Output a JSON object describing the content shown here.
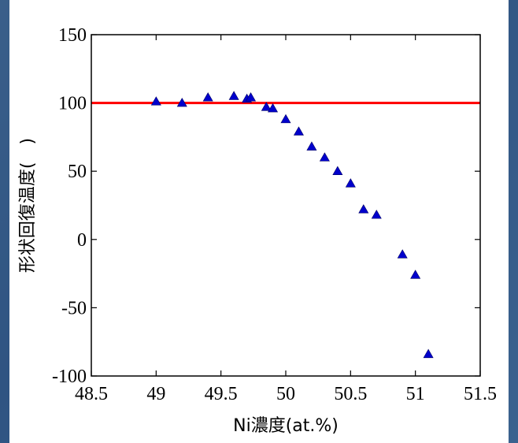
{
  "chart_data": {
    "type": "scatter",
    "xlabel": "Ni濃度(at.%)",
    "ylabel": "形状回復温度(　)",
    "xlim": [
      48.5,
      51.5
    ],
    "ylim": [
      -100,
      150
    ],
    "xticks": [
      "48.5",
      "49",
      "49.5",
      "50",
      "50.5",
      "51",
      "51.5"
    ],
    "yticks": [
      "-100",
      "-50",
      "0",
      "50",
      "100",
      "150"
    ],
    "grid": false,
    "reference_line": {
      "y": 100,
      "color": "#ff0000"
    },
    "series": [
      {
        "marker": "triangle",
        "color": "#0000cc",
        "points": [
          [
            49.0,
            101
          ],
          [
            49.2,
            100
          ],
          [
            49.4,
            104
          ],
          [
            49.6,
            105
          ],
          [
            49.7,
            103
          ],
          [
            49.73,
            104
          ],
          [
            49.85,
            97
          ],
          [
            49.9,
            96
          ],
          [
            50.0,
            88
          ],
          [
            50.1,
            79
          ],
          [
            50.2,
            68
          ],
          [
            50.3,
            60
          ],
          [
            50.4,
            50
          ],
          [
            50.5,
            41
          ],
          [
            50.6,
            22
          ],
          [
            50.7,
            18
          ],
          [
            50.9,
            -11
          ],
          [
            51.0,
            -26
          ],
          [
            51.1,
            -84
          ]
        ]
      }
    ]
  }
}
